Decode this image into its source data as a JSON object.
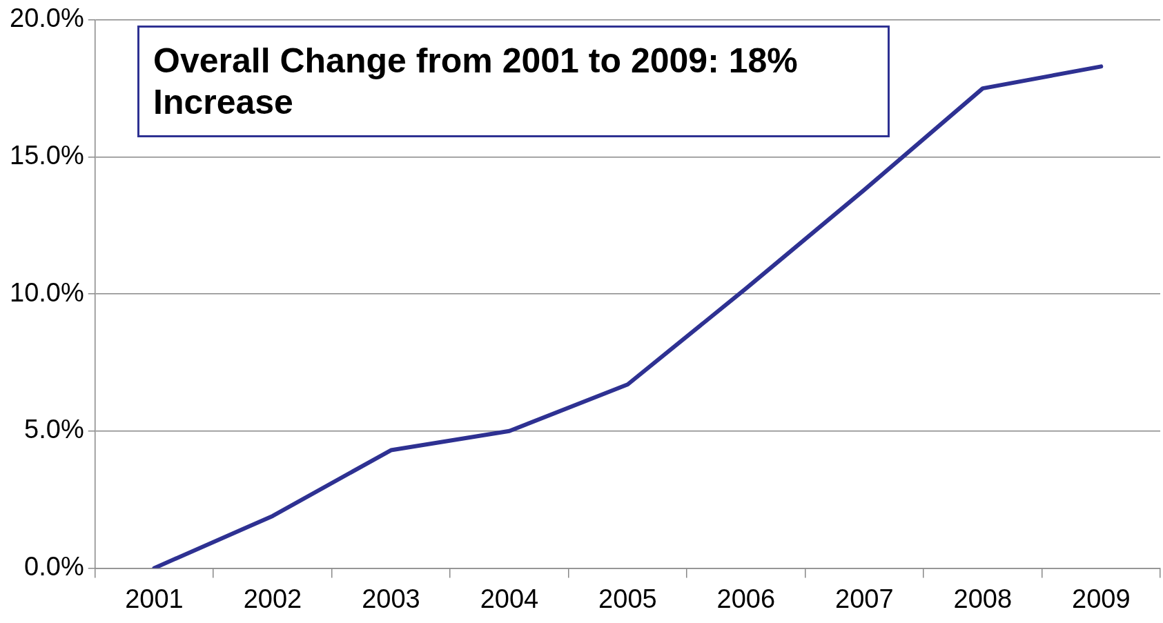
{
  "chart_data": {
    "type": "line",
    "categories": [
      "2001",
      "2002",
      "2003",
      "2004",
      "2005",
      "2006",
      "2007",
      "2008",
      "2009"
    ],
    "values": [
      0,
      1.9,
      4.3,
      5.0,
      6.7,
      10.2,
      13.8,
      17.5,
      18.3
    ],
    "color": "#2e3192",
    "marker": "none",
    "line_style": "solid",
    "grid": "y",
    "legend": false,
    "ylim": [
      0,
      20
    ],
    "yticks": [
      {
        "value": 0,
        "label": "0.0%"
      },
      {
        "value": 5,
        "label": "5.0%"
      },
      {
        "value": 10,
        "label": "10.0%"
      },
      {
        "value": 15,
        "label": "15.0%"
      },
      {
        "value": 20,
        "label": "20.0%"
      }
    ],
    "annotations": [
      "Overall Change from 2001 to 2009: 18% Increase"
    ]
  }
}
